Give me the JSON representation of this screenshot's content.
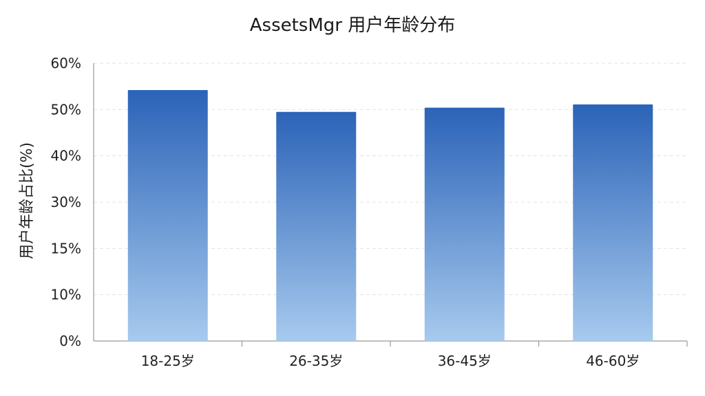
{
  "chart_data": {
    "type": "bar",
    "title": "AssetsMgr 用户年龄分布",
    "xlabel": "",
    "ylabel": "用户年龄占比(%)",
    "categories": [
      "18-25岁",
      "26-35岁",
      "36-45岁",
      "46-60岁"
    ],
    "values": [
      54.2,
      49.5,
      50.4,
      51.1
    ],
    "y_tick_labels": [
      "0%",
      "10%",
      "15%",
      "30%",
      "40%",
      "50%",
      "60%"
    ],
    "ylim": [
      0,
      60
    ],
    "grid": true,
    "legend": "none",
    "colors": {
      "bar_top": "#2b63b8",
      "bar_bottom": "#a7caee",
      "grid": "#e3e3e3",
      "axis": "#999999"
    }
  }
}
